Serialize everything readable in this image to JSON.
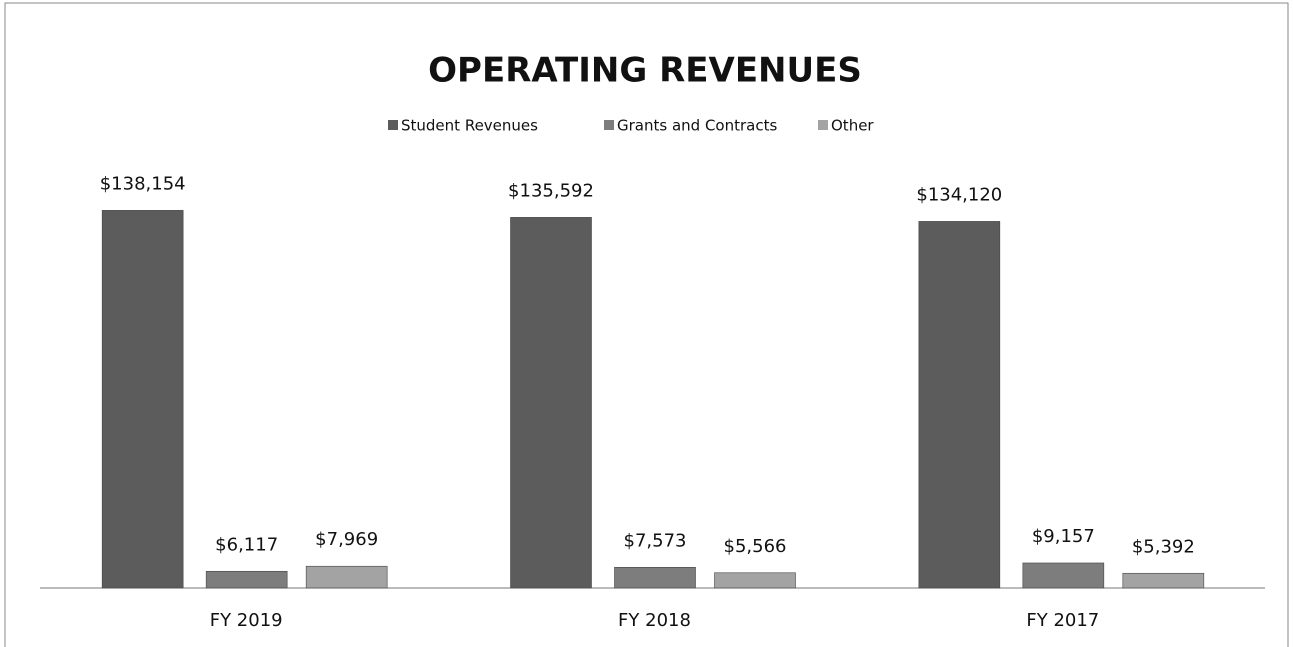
{
  "chart_data": {
    "type": "bar",
    "title": "OPERATING REVENUES",
    "categories": [
      "FY 2019",
      "FY 2018",
      "FY 2017"
    ],
    "series": [
      {
        "name": "Student Revenues",
        "color": "#5c5c5c",
        "values": [
          138154,
          135592,
          134120
        ],
        "value_labels": [
          "$138,154",
          "$135,592",
          "$134,120"
        ]
      },
      {
        "name": "Grants and Contracts",
        "color": "#7d7d7d",
        "values": [
          6117,
          7573,
          9157
        ],
        "value_labels": [
          "$6,117",
          "$7,573",
          "$9,157"
        ]
      },
      {
        "name": "Other",
        "color": "#a3a3a3",
        "values": [
          7969,
          5566,
          5392
        ],
        "value_labels": [
          "$7,969",
          "$5,566",
          "$5,392"
        ]
      }
    ],
    "ylim": [
      0,
      150000
    ],
    "legend": "top"
  }
}
